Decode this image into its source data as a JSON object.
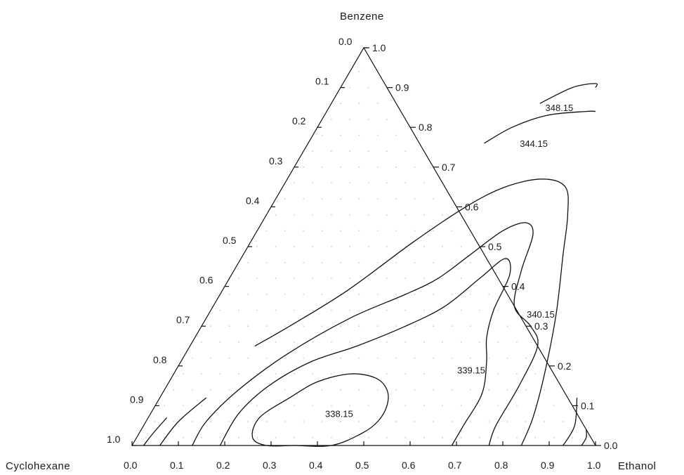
{
  "chart_data": {
    "type": "ternary-contour",
    "components": {
      "left": "Cyclohexane",
      "right": "Ethanol",
      "top": "Benzene"
    },
    "ticks": [
      0.0,
      0.1,
      0.2,
      0.3,
      0.4,
      0.5,
      0.6,
      0.7,
      0.8,
      0.9,
      1.0
    ],
    "bottom_tick_labels": [
      "0.0",
      "0.1",
      "0.2",
      "0.3",
      "0.4",
      "0.5",
      "0.6",
      "0.7",
      "0.8",
      "0.9",
      "1.0"
    ],
    "left_tick_labels": [
      "1.0",
      "0.9",
      "0.8",
      "0.7",
      "0.6",
      "0.5",
      "0.4",
      "0.3",
      "0.2",
      "0.1",
      "0.0"
    ],
    "right_tick_labels": [
      "0.0",
      "0.1",
      "0.2",
      "0.3",
      "0.4",
      "0.5",
      "0.6",
      "0.7",
      "0.8",
      "0.9",
      "1.0"
    ],
    "contours": [
      {
        "label": "348.15",
        "closed": false,
        "points": [
          [
            0.45,
            0.86
          ],
          [
            0.5,
            0.9
          ],
          [
            0.545,
            0.91
          ],
          [
            0.55,
            0.9
          ]
        ]
      },
      {
        "label": "344.15",
        "closed": false,
        "points": [
          [
            0.38,
            0.76
          ],
          [
            0.42,
            0.8
          ],
          [
            0.48,
            0.83
          ],
          [
            0.56,
            0.84
          ],
          [
            0.58,
            0.84
          ]
        ]
      },
      {
        "label": "",
        "closed": false,
        "points": [
          [
            0.14,
            0.25
          ],
          [
            0.19,
            0.3
          ],
          [
            0.27,
            0.39
          ],
          [
            0.35,
            0.51
          ],
          [
            0.42,
            0.6
          ],
          [
            0.48,
            0.65
          ],
          [
            0.55,
            0.67
          ],
          [
            0.61,
            0.65
          ],
          [
            0.65,
            0.58
          ],
          [
            0.69,
            0.48
          ],
          [
            0.75,
            0.33
          ],
          [
            0.8,
            0.18
          ],
          [
            0.83,
            0.07
          ],
          [
            0.84,
            0.0
          ]
        ]
      },
      {
        "label": "340.15",
        "closed": false,
        "points": [
          [
            0.13,
            0.0
          ],
          [
            0.13,
            0.06
          ],
          [
            0.16,
            0.14
          ],
          [
            0.22,
            0.23
          ],
          [
            0.31,
            0.32
          ],
          [
            0.4,
            0.38
          ],
          [
            0.45,
            0.42
          ],
          [
            0.49,
            0.48
          ],
          [
            0.53,
            0.54
          ],
          [
            0.57,
            0.56
          ],
          [
            0.6,
            0.53
          ],
          [
            0.62,
            0.44
          ],
          [
            0.65,
            0.35
          ],
          [
            0.71,
            0.3
          ],
          [
            0.75,
            0.25
          ],
          [
            0.76,
            0.15
          ],
          [
            0.76,
            0.05
          ],
          [
            0.77,
            0.0
          ]
        ]
      },
      {
        "label": "339.15",
        "closed": false,
        "points": [
          [
            0.19,
            0.0
          ],
          [
            0.19,
            0.08
          ],
          [
            0.22,
            0.15
          ],
          [
            0.28,
            0.21
          ],
          [
            0.36,
            0.25
          ],
          [
            0.44,
            0.3
          ],
          [
            0.5,
            0.35
          ],
          [
            0.54,
            0.42
          ],
          [
            0.57,
            0.47
          ],
          [
            0.6,
            0.43
          ],
          [
            0.61,
            0.34
          ],
          [
            0.63,
            0.27
          ],
          [
            0.66,
            0.21
          ],
          [
            0.69,
            0.13
          ],
          [
            0.69,
            0.05
          ],
          [
            0.69,
            0.0
          ]
        ]
      },
      {
        "label": "338.15",
        "closed": true,
        "points": [
          [
            0.35,
            0.0
          ],
          [
            0.43,
            0.0
          ],
          [
            0.48,
            0.03
          ],
          [
            0.5,
            0.06
          ],
          [
            0.5,
            0.1
          ],
          [
            0.48,
            0.14
          ],
          [
            0.44,
            0.17
          ],
          [
            0.38,
            0.18
          ],
          [
            0.32,
            0.16
          ],
          [
            0.28,
            0.12
          ],
          [
            0.24,
            0.07
          ],
          [
            0.25,
            0.02
          ],
          [
            0.29,
            0.0
          ]
        ]
      },
      {
        "label": "",
        "closed": false,
        "points": [
          [
            0.06,
            0.0
          ],
          [
            0.07,
            0.06
          ],
          [
            0.1,
            0.12
          ]
        ]
      },
      {
        "label": "",
        "closed": false,
        "points": [
          [
            0.93,
            0.0
          ],
          [
            0.93,
            0.05
          ],
          [
            0.9,
            0.12
          ]
        ]
      },
      {
        "label": "",
        "closed": false,
        "points": [
          [
            0.97,
            0.0
          ],
          [
            0.97,
            0.02
          ],
          [
            0.96,
            0.04
          ]
        ]
      },
      {
        "label": "",
        "closed": false,
        "points": [
          [
            0.025,
            0.0
          ],
          [
            0.03,
            0.03
          ],
          [
            0.04,
            0.07
          ]
        ]
      }
    ]
  }
}
